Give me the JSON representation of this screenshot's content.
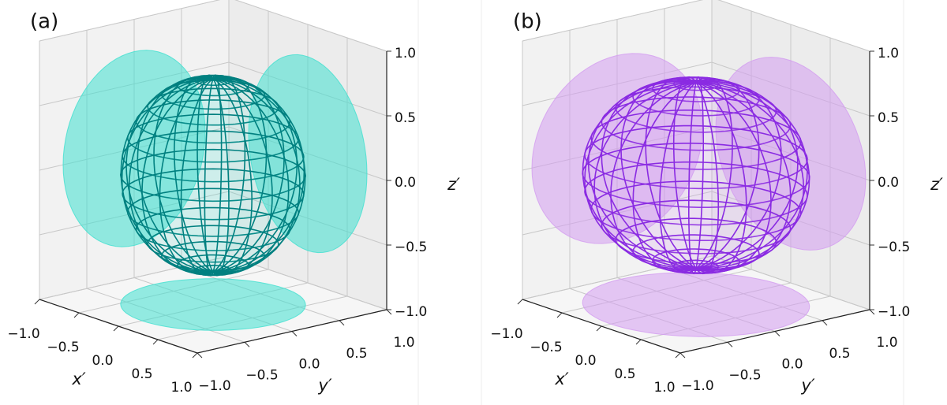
{
  "chart_data": [
    {
      "type": "ellipsoid3d",
      "panel_label": "(a)",
      "color": "#40e0d0",
      "edgecolor": "#008080",
      "radii": [
        0.75,
        0.75,
        0.75
      ],
      "xlabel": "x′",
      "ylabel": "y′",
      "zlabel": "z′",
      "xlim": [
        -1,
        1
      ],
      "ylim": [
        -1,
        1
      ],
      "zlim": [
        -1,
        1
      ],
      "xticks": [
        {
          "value": -1,
          "label": "−1.0"
        },
        {
          "value": -0.5,
          "label": "−0.5"
        },
        {
          "value": 0,
          "label": "0.0"
        },
        {
          "value": 0.5,
          "label": "0.5"
        },
        {
          "value": 1,
          "label": "1.0"
        }
      ],
      "yticks": [
        {
          "value": -1,
          "label": "−1.0"
        },
        {
          "value": -0.5,
          "label": "−0.5"
        },
        {
          "value": 0,
          "label": "0.0"
        },
        {
          "value": 0.5,
          "label": "0.5"
        },
        {
          "value": 1,
          "label": "1.0"
        }
      ],
      "zticks": [
        {
          "value": -1,
          "label": "−1.0"
        },
        {
          "value": -0.5,
          "label": "−0.5"
        },
        {
          "value": 0,
          "label": "0.0"
        },
        {
          "value": 0.5,
          "label": "0.5"
        },
        {
          "value": 1,
          "label": "1.0"
        }
      ],
      "grid": true
    },
    {
      "type": "ellipsoid3d",
      "panel_label": "(b)",
      "color": "#d39cf0",
      "edgecolor": "#8a2be2",
      "radii": [
        0.95,
        0.9,
        0.72
      ],
      "xlabel": "x′",
      "ylabel": "y′",
      "zlabel": "z′",
      "xlim": [
        -1,
        1
      ],
      "ylim": [
        -1,
        1
      ],
      "zlim": [
        -1,
        1
      ],
      "xticks": [
        {
          "value": -1,
          "label": "−1.0"
        },
        {
          "value": -0.5,
          "label": "−0.5"
        },
        {
          "value": 0,
          "label": "0.0"
        },
        {
          "value": 0.5,
          "label": "0.5"
        },
        {
          "value": 1,
          "label": "1.0"
        }
      ],
      "yticks": [
        {
          "value": -1,
          "label": "−1.0"
        },
        {
          "value": -0.5,
          "label": "−0.5"
        },
        {
          "value": 0,
          "label": "0.0"
        },
        {
          "value": 0.5,
          "label": "0.5"
        },
        {
          "value": 1,
          "label": "1.0"
        }
      ],
      "zticks": [
        {
          "value": -1,
          "label": "−1.0"
        },
        {
          "value": -0.5,
          "label": "−0.5"
        },
        {
          "value": 0,
          "label": "0.0"
        },
        {
          "value": 0.5,
          "label": "0.5"
        },
        {
          "value": 1,
          "label": "1.0"
        }
      ],
      "grid": true
    }
  ]
}
